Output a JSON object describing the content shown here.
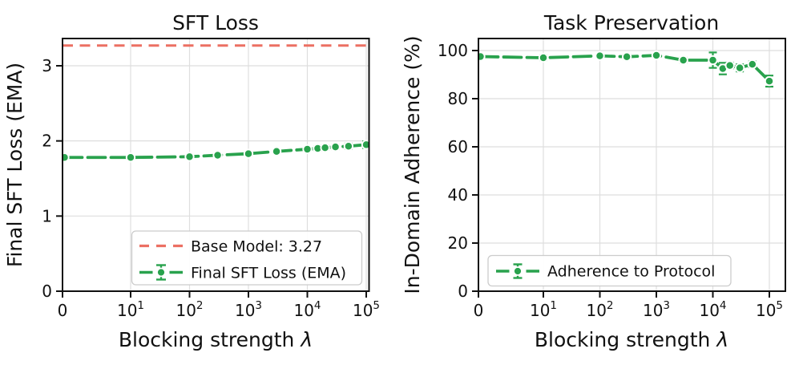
{
  "figure": {
    "background": "#ffffff",
    "frame_color": "#111111",
    "grid_color": "#dedede"
  },
  "chart_data": [
    {
      "type": "line",
      "title": "SFT Loss",
      "xlabel": "Blocking strength ",
      "xlabel_symbol": "λ",
      "ylabel": "Final SFT Loss (EMA)",
      "xscale": "symlog",
      "grid": true,
      "x": [
        0,
        10,
        100,
        300,
        1000,
        3000,
        10000,
        15000,
        20000,
        30000,
        50000,
        100000
      ],
      "xtick_labels": [
        {
          "base": "0",
          "exp": ""
        },
        {
          "base": "10",
          "exp": "1"
        },
        {
          "base": "10",
          "exp": "2"
        },
        {
          "base": "10",
          "exp": "3"
        },
        {
          "base": "10",
          "exp": "4"
        },
        {
          "base": "10",
          "exp": "5"
        }
      ],
      "yticks": [
        0,
        1,
        2,
        3
      ],
      "ylim": [
        0,
        3.36
      ],
      "legend_position": "lower right",
      "ref_line": {
        "label": "Base Model: 3.27",
        "value": 3.27,
        "color": "#ec7063",
        "style": "dashed"
      },
      "series": [
        {
          "name": "Final SFT Loss (EMA)",
          "color": "#29a24d",
          "marker": "circle",
          "line_style": "dashed",
          "values": [
            1.78,
            1.78,
            1.79,
            1.81,
            1.83,
            1.86,
            1.89,
            1.9,
            1.91,
            1.92,
            1.93,
            1.95
          ],
          "yerr": [
            0.015,
            0.015,
            0.015,
            0.02,
            0.02,
            0.02,
            0.025,
            0.03,
            0.03,
            0.03,
            0.035,
            0.045
          ]
        }
      ]
    },
    {
      "type": "line",
      "title": "Task Preservation",
      "xlabel": "Blocking strength ",
      "xlabel_symbol": "λ",
      "ylabel": "In-Domain Adherence (%)",
      "xscale": "symlog",
      "grid": true,
      "x": [
        0,
        10,
        100,
        300,
        1000,
        3000,
        10000,
        15000,
        20000,
        30000,
        50000,
        100000
      ],
      "xtick_labels": [
        {
          "base": "0",
          "exp": ""
        },
        {
          "base": "10",
          "exp": "1"
        },
        {
          "base": "10",
          "exp": "2"
        },
        {
          "base": "10",
          "exp": "3"
        },
        {
          "base": "10",
          "exp": "4"
        },
        {
          "base": "10",
          "exp": "5"
        }
      ],
      "yticks": [
        0,
        20,
        40,
        60,
        80,
        100
      ],
      "ylim": [
        0,
        105
      ],
      "legend_position": "lower left",
      "series": [
        {
          "name": "Adherence to Protocol",
          "color": "#29a24d",
          "marker": "circle",
          "line_style": "dashed",
          "values": [
            97.5,
            97.0,
            97.8,
            97.4,
            98.0,
            96.0,
            96.0,
            92.5,
            93.8,
            92.8,
            94.3,
            87.3
          ],
          "yerr": [
            0.8,
            1.0,
            0.8,
            0.9,
            0.8,
            1.0,
            3.2,
            2.4,
            1.2,
            1.5,
            1.2,
            2.3
          ]
        }
      ]
    }
  ]
}
